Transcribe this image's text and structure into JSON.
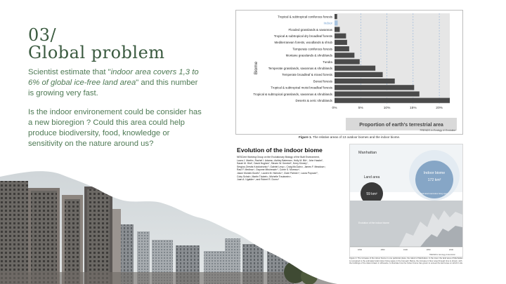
{
  "heading": {
    "number": "03/",
    "title": "Global problem"
  },
  "body": {
    "p1_pre": "Scientist estimate that \"",
    "p1_quote": "indoor area covers 1,3 to 6% of global ice-free land area",
    "p1_post": "\" and this number is growing very fast.",
    "p2": "Is the indoor environement could be consider has a new bioregion ? Could this area could help produce biodiversity, food, knowledge or sensitivity on the nature around us?"
  },
  "figure1": {
    "caption_label": "Figure 1.",
    "caption_text": "The relative areas of 13 outdoor biomes and the indoor biome.",
    "journal": "TRENDS in Ecology & Evolution",
    "x_title": "Proportion of earth's terrestrial area"
  },
  "chart_data": {
    "type": "bar",
    "orientation": "horizontal",
    "ylabel": "Biome",
    "xlabel": "Proportion of earth's terrestrial area",
    "xlim": [
      0,
      22
    ],
    "xticks": [
      "0%",
      "5%",
      "10%",
      "15%",
      "20%"
    ],
    "categories": [
      "Tropical & subtropical coniferous forests",
      "Indoor",
      "Flooded grasslands & savannas",
      "Tropical & subtropical dry broadleaf forests",
      "Mediterranean forests, woodlands & shrub",
      "Temperate coniferous forests",
      "Montane grasslands & shrublands",
      "Tundra",
      "Temperate grasslands, savannas & shrublands",
      "Temperate broadleaf & mixed forests",
      "Boreal forests",
      "Tropical & subtropical moist broadleaf forests",
      "Tropical & subtropical grasslands, savannas & shrublands",
      "Deserts & xeric shrublands"
    ],
    "values": [
      0.5,
      0.6,
      1.0,
      2.2,
      2.4,
      2.8,
      3.8,
      4.8,
      7.8,
      9.2,
      11.5,
      15.2,
      16.2,
      22.0
    ],
    "colors": {
      "bar": "#4a4a4a",
      "indoor_bar": "#a9c4df",
      "indoor_label": "#6f9fd0",
      "panel": "#e6e6e6",
      "dashed": "#8fb1d9"
    }
  },
  "paper": {
    "title": "Evolution of the indoor biome",
    "authors": [
      "NESCent Working Group on the Evolutionary Biology of the Built Environment,",
      "Laura J. Martin¹, Rachel I. Adams², Ashley Bateman³, Holly M. Bik⁴, John Hawks⁵,",
      "Sarah M. Hird⁶, David Hughes⁷, Steven W. Kembel⁸, Kerry Kinney⁹,",
      "Sergios-Orestis Kolokotronis¹⁰, Gabriel Levy¹¹, Craig McClain¹², James F. Meadow¹³,",
      "Raul F. Medina¹⁴, Gwynne Mhuireach¹⁵, Corrie S. Moreau¹⁶,",
      "Jason Munshi-South¹⁷, Lauren M. Nichols¹⁸, Clare Palmer¹⁹, Laura Popova²⁰,",
      "Coby Schal²¹, Martin Täubel²², Michelle Trautwein²³,",
      "Juan A. Ugalde²⁴, and Robert R. Dunn¹⁸"
    ]
  },
  "figure2": {
    "title": "Manhattan",
    "land_label": "Land area",
    "land_value": "59 km²",
    "indoor_label": "Indoor biome",
    "indoor_value": "172 km²",
    "indoor_sub": "Estimated total indoor living space",
    "evolution_label": "Evolution of the indoor biome",
    "years": [
      "1800",
      "1850",
      "1900",
      "1950",
      "2000"
    ],
    "journal": "TRENDS in Ecology & Evolution",
    "caption": "Figure 2. The increase of the indoor biome in one particular place, the island of Manhattan. In the inset, the land area of Manhattan is compared to the estimated total indoor living space in the borough. Below, the increase in floor area through time is shown, with the buildings of the island drawn in silhouette, to illustrate how the indoor biome has grown to exceed the land area on which it sits."
  }
}
